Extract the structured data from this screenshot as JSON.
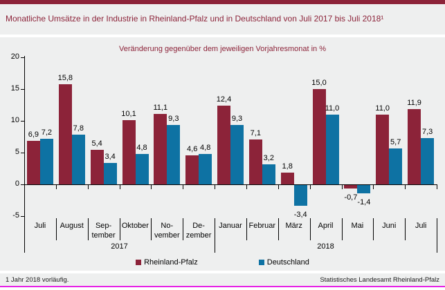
{
  "colors": {
    "accent_maroon": "#8c2339",
    "series_rheinland_pfalz": "#8c2339",
    "series_deutschland": "#0e72a3",
    "band_background": "#eeefef",
    "bottom_rule_magenta": "#e620e6"
  },
  "footer": {
    "footnote": "1 Jahr 2018 vorläufig.",
    "source": "Statistisches Landesamt Rheinland-Pfalz"
  },
  "chart_data": {
    "type": "bar",
    "title": "Monatliche Umsätze in der Industrie in Rheinland-Pfalz und in Deutschland von Juli 2017 bis Juli 2018¹",
    "subtitle": "Veränderung gegenüber dem jeweiligen Vorjahresmonat in %",
    "categories": [
      "Juli",
      "August",
      "September",
      "Oktober",
      "November",
      "Dezember",
      "Januar",
      "Februar",
      "März",
      "April",
      "Mai",
      "Juni",
      "Juli"
    ],
    "category_display": [
      [
        "Juli"
      ],
      [
        "August"
      ],
      [
        "Sep-",
        "tember"
      ],
      [
        "Oktober"
      ],
      [
        "No-",
        "vember"
      ],
      [
        "De-",
        "zember"
      ],
      [
        "Januar"
      ],
      [
        "Februar"
      ],
      [
        "März"
      ],
      [
        "April"
      ],
      [
        "Mai"
      ],
      [
        "Juni"
      ],
      [
        "Juli"
      ]
    ],
    "year_groups": [
      {
        "label": "2017",
        "start": 0,
        "span": 6
      },
      {
        "label": "2018",
        "start": 6,
        "span": 7
      }
    ],
    "series": [
      {
        "name": "Rheinland-Pfalz",
        "color": "#8c2339",
        "values": [
          6.9,
          15.8,
          5.4,
          10.1,
          11.1,
          4.6,
          12.4,
          7.1,
          1.8,
          15.0,
          -0.7,
          11.0,
          11.9
        ],
        "labels": [
          "6,9",
          "15,8",
          "5,4",
          "10,1",
          "11,1",
          "4,6",
          "12,4",
          "7,1",
          "1,8",
          "15,0",
          "-0,7",
          "11,0",
          "11,9"
        ]
      },
      {
        "name": "Deutschland",
        "color": "#0e72a3",
        "values": [
          7.2,
          7.8,
          3.4,
          4.8,
          9.3,
          4.8,
          9.3,
          3.2,
          -3.4,
          11.0,
          -1.4,
          5.7,
          7.3
        ],
        "labels": [
          "7,2",
          "7,8",
          "3,4",
          "4,8",
          "9,3",
          "4,8",
          "9,3",
          "3,2",
          "-3,4",
          "11,0",
          "-1,4",
          "5,7",
          "7,3"
        ]
      }
    ],
    "y_axis": {
      "ticks": [
        20,
        15,
        10,
        5,
        0,
        -5
      ],
      "min": -5,
      "max": 20
    },
    "grid": false,
    "legend_position": "bottom"
  }
}
